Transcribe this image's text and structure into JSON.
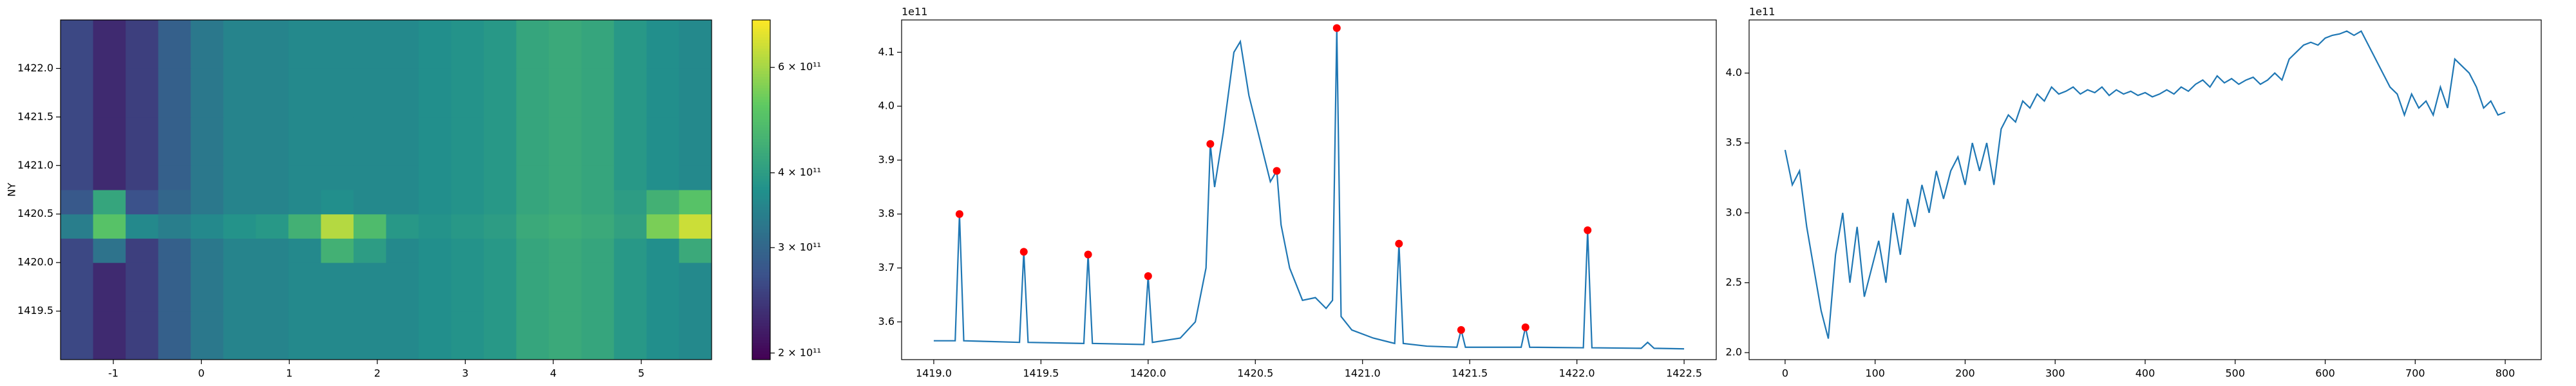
{
  "chart_data": [
    {
      "type": "heatmap",
      "ylabel": "NY",
      "colormap": "viridis",
      "xlim": [
        -1.6,
        5.8
      ],
      "xticks": [
        -1,
        0,
        1,
        2,
        3,
        4,
        5
      ],
      "ylim": [
        1419.0,
        1422.5
      ],
      "yticks": [
        1419.5,
        {
          "value": 1420,
          "label": "1420.0"
        },
        1420.5,
        {
          "value": 1421,
          "label": "1421.0"
        },
        1421.5,
        {
          "value": 1422,
          "label": "1422.0"
        }
      ],
      "xbins": [
        -1.6,
        -1.23,
        -0.86,
        -0.49,
        -0.12,
        0.25,
        0.62,
        0.99,
        1.36,
        1.73,
        2.1,
        2.47,
        2.84,
        3.21,
        3.58,
        3.95,
        4.32,
        4.69,
        5.06,
        5.43,
        5.8
      ],
      "ybins": [
        1419.0,
        1419.5,
        1420.0,
        1420.25,
        1420.5,
        1420.75,
        1421.0,
        1421.5,
        1422.0,
        1422.5
      ],
      "z": [
        [
          260000000000.0,
          230000000000.0,
          250000000000.0,
          290000000000.0,
          330000000000.0,
          350000000000.0,
          350000000000.0,
          360000000000.0,
          360000000000.0,
          360000000000.0,
          360000000000.0,
          370000000000.0,
          380000000000.0,
          390000000000.0,
          420000000000.0,
          430000000000.0,
          420000000000.0,
          390000000000.0,
          370000000000.0,
          360000000000.0
        ],
        [
          260000000000.0,
          230000000000.0,
          250000000000.0,
          290000000000.0,
          330000000000.0,
          350000000000.0,
          350000000000.0,
          360000000000.0,
          360000000000.0,
          360000000000.0,
          360000000000.0,
          370000000000.0,
          380000000000.0,
          390000000000.0,
          420000000000.0,
          430000000000.0,
          420000000000.0,
          390000000000.0,
          370000000000.0,
          360000000000.0
        ],
        [
          260000000000.0,
          320000000000.0,
          250000000000.0,
          290000000000.0,
          330000000000.0,
          350000000000.0,
          350000000000.0,
          360000000000.0,
          450000000000.0,
          400000000000.0,
          360000000000.0,
          370000000000.0,
          380000000000.0,
          390000000000.0,
          420000000000.0,
          430000000000.0,
          420000000000.0,
          390000000000.0,
          370000000000.0,
          430000000000.0
        ],
        [
          340000000000.0,
          500000000000.0,
          360000000000.0,
          340000000000.0,
          360000000000.0,
          380000000000.0,
          390000000000.0,
          450000000000.0,
          620000000000.0,
          480000000000.0,
          390000000000.0,
          380000000000.0,
          390000000000.0,
          400000000000.0,
          430000000000.0,
          440000000000.0,
          430000000000.0,
          410000000000.0,
          550000000000.0,
          650000000000.0
        ],
        [
          280000000000.0,
          420000000000.0,
          270000000000.0,
          300000000000.0,
          330000000000.0,
          350000000000.0,
          350000000000.0,
          360000000000.0,
          370000000000.0,
          360000000000.0,
          360000000000.0,
          370000000000.0,
          380000000000.0,
          390000000000.0,
          420000000000.0,
          430000000000.0,
          420000000000.0,
          400000000000.0,
          450000000000.0,
          500000000000.0
        ],
        [
          260000000000.0,
          230000000000.0,
          250000000000.0,
          290000000000.0,
          330000000000.0,
          350000000000.0,
          350000000000.0,
          360000000000.0,
          360000000000.0,
          360000000000.0,
          360000000000.0,
          370000000000.0,
          380000000000.0,
          390000000000.0,
          420000000000.0,
          430000000000.0,
          420000000000.0,
          390000000000.0,
          370000000000.0,
          360000000000.0
        ],
        [
          260000000000.0,
          230000000000.0,
          250000000000.0,
          290000000000.0,
          330000000000.0,
          350000000000.0,
          350000000000.0,
          360000000000.0,
          360000000000.0,
          360000000000.0,
          360000000000.0,
          370000000000.0,
          380000000000.0,
          390000000000.0,
          420000000000.0,
          430000000000.0,
          420000000000.0,
          390000000000.0,
          370000000000.0,
          360000000000.0
        ],
        [
          260000000000.0,
          230000000000.0,
          250000000000.0,
          290000000000.0,
          330000000000.0,
          350000000000.0,
          350000000000.0,
          360000000000.0,
          360000000000.0,
          360000000000.0,
          360000000000.0,
          370000000000.0,
          380000000000.0,
          390000000000.0,
          420000000000.0,
          430000000000.0,
          420000000000.0,
          390000000000.0,
          370000000000.0,
          360000000000.0
        ],
        [
          260000000000.0,
          230000000000.0,
          250000000000.0,
          290000000000.0,
          330000000000.0,
          350000000000.0,
          350000000000.0,
          360000000000.0,
          360000000000.0,
          360000000000.0,
          360000000000.0,
          370000000000.0,
          380000000000.0,
          390000000000.0,
          420000000000.0,
          430000000000.0,
          420000000000.0,
          390000000000.0,
          370000000000.0,
          360000000000.0
        ]
      ],
      "colorbar": {
        "scale": "log",
        "lim": [
          195000000000.0,
          720000000000.0
        ],
        "ticks": [
          {
            "value": 200000000000.0,
            "label": "2 × 10¹¹"
          },
          {
            "value": 300000000000.0,
            "label": "3 × 10¹¹"
          },
          {
            "value": 400000000000.0,
            "label": "4 × 10¹¹"
          },
          {
            "value": 600000000000.0,
            "label": "6 × 10¹¹"
          }
        ]
      }
    },
    {
      "type": "line",
      "y_offset_label": "1e11",
      "xlim": [
        1418.85,
        1422.65
      ],
      "xticks": [
        {
          "value": 1419,
          "label": "1419.0"
        },
        1419.5,
        {
          "value": 1420,
          "label": "1420.0"
        },
        1420.5,
        {
          "value": 1421,
          "label": "1421.0"
        },
        1421.5,
        {
          "value": 1422,
          "label": "1422.0"
        },
        1422.5
      ],
      "ylim": [
        3.53,
        4.16
      ],
      "yticks": [
        3.6,
        3.7,
        3.8,
        3.9,
        {
          "value": 4,
          "label": "4.0"
        },
        4.1
      ],
      "series": [
        {
          "color": "#1f77b4",
          "marker": "none",
          "x": [
            1419.0,
            1419.1,
            1419.12,
            1419.14,
            1419.4,
            1419.42,
            1419.44,
            1419.7,
            1419.72,
            1419.74,
            1419.98,
            1420.0,
            1420.02,
            1420.15,
            1420.22,
            1420.27,
            1420.29,
            1420.31,
            1420.35,
            1420.4,
            1420.43,
            1420.47,
            1420.52,
            1420.57,
            1420.6,
            1420.62,
            1420.66,
            1420.72,
            1420.78,
            1420.83,
            1420.86,
            1420.88,
            1420.9,
            1420.95,
            1421.05,
            1421.15,
            1421.17,
            1421.19,
            1421.3,
            1421.44,
            1421.46,
            1421.48,
            1421.74,
            1421.76,
            1421.78,
            1422.03,
            1422.05,
            1422.07,
            1422.3,
            1422.33,
            1422.36,
            1422.5
          ],
          "values": [
            3.565,
            3.565,
            3.8,
            3.565,
            3.562,
            3.73,
            3.562,
            3.56,
            3.725,
            3.56,
            3.558,
            3.685,
            3.562,
            3.57,
            3.6,
            3.7,
            3.93,
            3.85,
            3.95,
            4.1,
            4.12,
            4.02,
            3.94,
            3.86,
            3.88,
            3.78,
            3.7,
            3.64,
            3.645,
            3.625,
            3.64,
            4.145,
            3.61,
            3.585,
            3.57,
            3.56,
            3.745,
            3.56,
            3.555,
            3.553,
            3.585,
            3.553,
            3.553,
            3.59,
            3.553,
            3.552,
            3.77,
            3.552,
            3.551,
            3.562,
            3.551,
            3.55
          ]
        },
        {
          "color": "red",
          "marker": "o",
          "line": false,
          "x": [
            1419.12,
            1419.42,
            1419.72,
            1420.0,
            1420.29,
            1420.6,
            1420.88,
            1421.17,
            1421.46,
            1421.76,
            1422.05
          ],
          "values": [
            3.8,
            3.73,
            3.725,
            3.685,
            3.93,
            3.88,
            4.145,
            3.745,
            3.585,
            3.59,
            3.77
          ]
        }
      ]
    },
    {
      "type": "line",
      "y_offset_label": "1e11",
      "xlim": [
        -40,
        840
      ],
      "xticks": [
        0,
        100,
        200,
        300,
        400,
        500,
        600,
        700,
        800
      ],
      "ylim": [
        1.95,
        4.38
      ],
      "yticks": [
        {
          "value": 2,
          "label": "2.0"
        },
        2.5,
        {
          "value": 3,
          "label": "3.0"
        },
        3.5,
        {
          "value": 4,
          "label": "4.0"
        }
      ],
      "series": [
        {
          "color": "#1f77b4",
          "marker": "none",
          "x": [
            0,
            8,
            16,
            24,
            32,
            40,
            48,
            56,
            64,
            72,
            80,
            88,
            96,
            104,
            112,
            120,
            128,
            136,
            144,
            152,
            160,
            168,
            176,
            184,
            192,
            200,
            208,
            216,
            224,
            232,
            240,
            248,
            256,
            264,
            272,
            280,
            288,
            296,
            304,
            312,
            320,
            328,
            336,
            344,
            352,
            360,
            368,
            376,
            384,
            392,
            400,
            408,
            416,
            424,
            432,
            440,
            448,
            456,
            464,
            472,
            480,
            488,
            496,
            504,
            512,
            520,
            528,
            536,
            544,
            552,
            560,
            568,
            576,
            584,
            592,
            600,
            608,
            616,
            624,
            632,
            640,
            648,
            656,
            664,
            672,
            680,
            688,
            696,
            704,
            712,
            720,
            728,
            736,
            744,
            752,
            760,
            768,
            776,
            784,
            792,
            800
          ],
          "values": [
            3.45,
            3.2,
            3.3,
            2.9,
            2.6,
            2.3,
            2.1,
            2.7,
            3.0,
            2.5,
            2.9,
            2.4,
            2.6,
            2.8,
            2.5,
            3.0,
            2.7,
            3.1,
            2.9,
            3.2,
            3.0,
            3.3,
            3.1,
            3.3,
            3.4,
            3.2,
            3.5,
            3.3,
            3.5,
            3.2,
            3.6,
            3.7,
            3.65,
            3.8,
            3.75,
            3.85,
            3.8,
            3.9,
            3.85,
            3.87,
            3.9,
            3.85,
            3.88,
            3.86,
            3.9,
            3.84,
            3.88,
            3.85,
            3.87,
            3.84,
            3.86,
            3.83,
            3.85,
            3.88,
            3.85,
            3.9,
            3.87,
            3.92,
            3.95,
            3.9,
            3.98,
            3.93,
            3.96,
            3.92,
            3.95,
            3.97,
            3.92,
            3.95,
            4.0,
            3.95,
            4.1,
            4.15,
            4.2,
            4.22,
            4.2,
            4.25,
            4.27,
            4.28,
            4.3,
            4.27,
            4.3,
            4.2,
            4.1,
            4.0,
            3.9,
            3.85,
            3.7,
            3.85,
            3.75,
            3.8,
            3.7,
            3.9,
            3.75,
            4.1,
            4.05,
            4.0,
            3.9,
            3.75,
            3.8,
            3.7,
            3.72
          ]
        }
      ]
    }
  ]
}
